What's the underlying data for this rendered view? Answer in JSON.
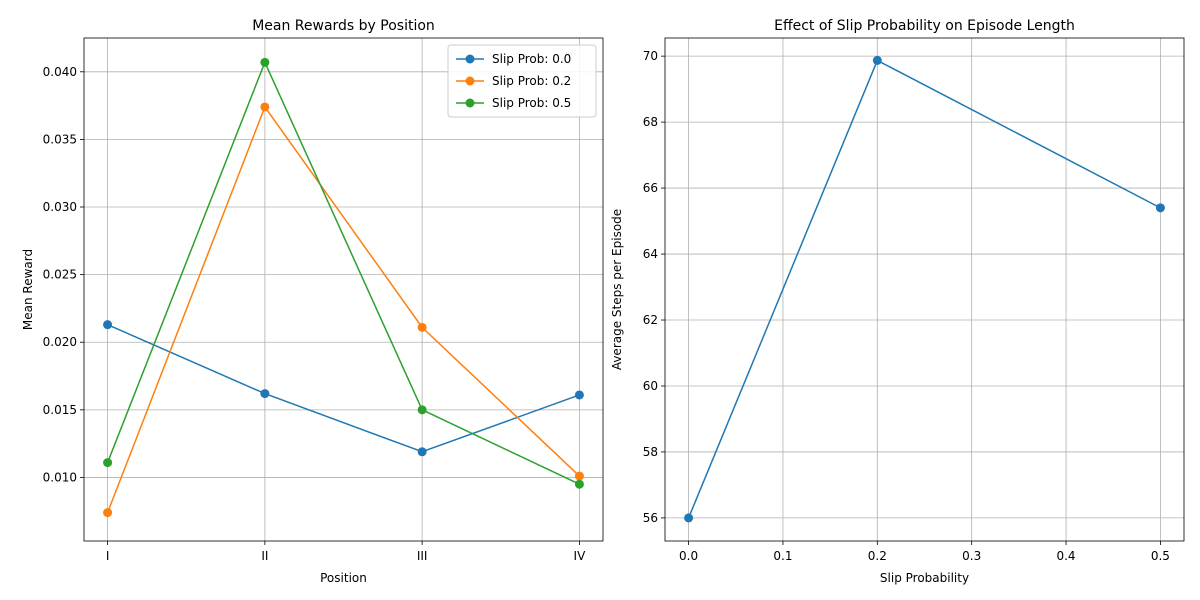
{
  "chart_data": [
    {
      "type": "line",
      "title": "Mean Rewards by Position",
      "xlabel": "Position",
      "ylabel": "Mean Reward",
      "categories": [
        "I",
        "II",
        "III",
        "IV"
      ],
      "ylim": [
        0.0053,
        0.0425
      ],
      "yticks": [
        0.01,
        0.015,
        0.02,
        0.025,
        0.03,
        0.035,
        0.04
      ],
      "ytick_labels": [
        "0.010",
        "0.015",
        "0.020",
        "0.025",
        "0.030",
        "0.035",
        "0.040"
      ],
      "grid": true,
      "legend_position": "top-right",
      "series": [
        {
          "name": "Slip Prob: 0.0",
          "color": "#1f77b4",
          "values": [
            0.0213,
            0.0162,
            0.0119,
            0.0161
          ]
        },
        {
          "name": "Slip Prob: 0.2",
          "color": "#ff7f0e",
          "values": [
            0.0074,
            0.0374,
            0.0211,
            0.0101
          ]
        },
        {
          "name": "Slip Prob: 0.5",
          "color": "#2ca02c",
          "values": [
            0.0111,
            0.0407,
            0.015,
            0.0095
          ]
        }
      ]
    },
    {
      "type": "line",
      "title": "Effect of Slip Probability on Episode Length",
      "xlabel": "Slip Probability",
      "ylabel": "Average Steps per Episode",
      "xlim": [
        -0.025,
        0.525
      ],
      "ylim": [
        55.3,
        70.55
      ],
      "xticks": [
        0.0,
        0.1,
        0.2,
        0.3,
        0.4,
        0.5
      ],
      "xtick_labels": [
        "0.0",
        "0.1",
        "0.2",
        "0.3",
        "0.4",
        "0.5"
      ],
      "yticks": [
        56,
        58,
        60,
        62,
        64,
        66,
        68,
        70
      ],
      "ytick_labels": [
        "56",
        "58",
        "60",
        "62",
        "64",
        "66",
        "68",
        "70"
      ],
      "grid": true,
      "series": [
        {
          "color": "#1f77b4",
          "x": [
            0.0,
            0.2,
            0.5
          ],
          "values": [
            56.0,
            69.87,
            65.4
          ]
        }
      ]
    }
  ]
}
